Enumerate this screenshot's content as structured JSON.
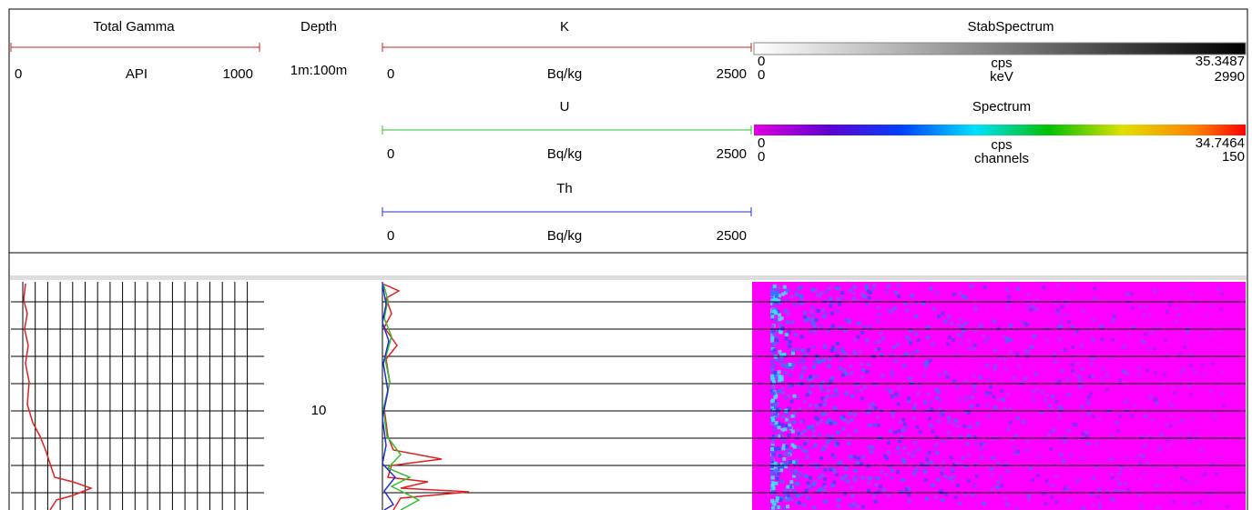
{
  "tracks": {
    "total_gamma": {
      "title": "Total Gamma",
      "min": "0",
      "unit": "API",
      "max": "1000"
    },
    "depth": {
      "title": "Depth",
      "scale": "1m:100m",
      "label": "10"
    },
    "k": {
      "title": "K",
      "min": "0",
      "unit": "Bq/kg",
      "max": "2500"
    },
    "u": {
      "title": "U",
      "min": "0",
      "unit": "Bq/kg",
      "max": "2500"
    },
    "th": {
      "title": "Th",
      "min": "0",
      "unit": "Bq/kg",
      "max": "2500"
    },
    "stab_spectrum": {
      "title": "StabSpectrum",
      "x_min": "0",
      "x_unit": "cps",
      "x_max": "35.3487",
      "y_min": "0",
      "y_unit": "keV",
      "y_max": "2990"
    },
    "spectrum": {
      "title": "Spectrum",
      "x_min": "0",
      "x_unit": "cps",
      "x_max": "34.7464",
      "y_min": "0",
      "y_unit": "channels",
      "y_max": "150"
    }
  }
}
